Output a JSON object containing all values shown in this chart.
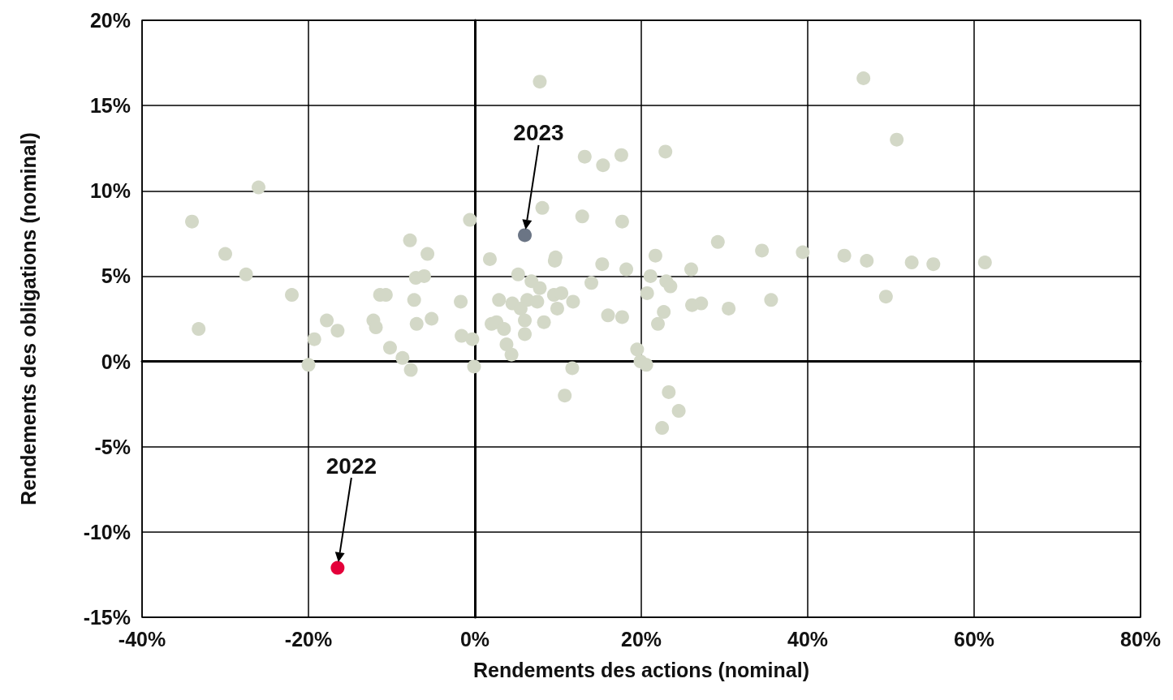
{
  "chart_data": {
    "type": "scatter",
    "xlabel": "Rendements des actions (nominal)",
    "ylabel": "Rendements des obligations (nominal)",
    "xlim": [
      -40,
      80
    ],
    "xticks": [
      {
        "value": -40,
        "label": "-40%"
      },
      {
        "value": -20,
        "label": "-20%"
      },
      {
        "value": 0,
        "label": "0%"
      },
      {
        "value": 20,
        "label": "20%"
      },
      {
        "value": 40,
        "label": "40%"
      },
      {
        "value": 60,
        "label": "60%"
      },
      {
        "value": 80,
        "label": "80%"
      }
    ],
    "ylim": [
      -15,
      20
    ],
    "yticks": [
      {
        "value": -15,
        "label": "-15%"
      },
      {
        "value": -10,
        "label": "-10%"
      },
      {
        "value": -5,
        "label": "-5%"
      },
      {
        "value": 0,
        "label": "0%"
      },
      {
        "value": 5,
        "label": "5%"
      },
      {
        "value": 10,
        "label": "10%"
      },
      {
        "value": 15,
        "label": "15%"
      },
      {
        "value": 20,
        "label": "20%"
      }
    ],
    "grid": true,
    "legend": false,
    "marker": "circle",
    "series": [
      {
        "color": "#d3d8c7",
        "x": [
          7.8,
          46.7,
          50.7,
          13.2,
          17.6,
          15.4,
          22.9,
          -26.0,
          8.1,
          12.9,
          17.7,
          -34.0,
          -0.6,
          -7.8,
          29.2,
          -30.0,
          -5.7,
          21.7,
          34.5,
          39.4,
          44.4,
          47.1,
          52.5,
          55.1,
          61.3,
          1.8,
          9.7,
          9.6,
          15.3,
          18.2,
          26.0,
          -27.5,
          -6.1,
          -7.1,
          5.2,
          21.1,
          6.8,
          7.8,
          14.0,
          23.0,
          23.5,
          -22.0,
          -11.4,
          -10.7,
          9.5,
          10.4,
          20.7,
          49.4,
          -7.3,
          -1.7,
          2.9,
          6.3,
          7.5,
          4.5,
          11.8,
          35.6,
          27.2,
          26.1,
          5.5,
          9.9,
          30.5,
          22.7,
          16.0,
          17.7,
          -33.2,
          -5.2,
          -17.8,
          -12.2,
          -11.9,
          -16.5,
          -7.0,
          2.0,
          2.6,
          6.0,
          8.3,
          22.0,
          3.5,
          6.0,
          -1.6,
          -0.3,
          -19.3,
          -10.2,
          3.8,
          4.4,
          -8.7,
          19.5,
          19.9,
          20.6,
          -20.0,
          -0.1,
          -7.7,
          11.7,
          10.8,
          23.3,
          24.5,
          22.5
        ],
        "values": [
          16.4,
          16.6,
          13.0,
          12.0,
          12.1,
          11.5,
          12.3,
          10.2,
          9.0,
          8.5,
          8.2,
          8.2,
          8.3,
          7.1,
          7.0,
          6.3,
          6.3,
          6.2,
          6.5,
          6.4,
          6.2,
          5.9,
          5.8,
          5.7,
          5.8,
          6.0,
          6.1,
          5.9,
          5.7,
          5.4,
          5.4,
          5.1,
          5.0,
          4.9,
          5.1,
          5.0,
          4.7,
          4.3,
          4.6,
          4.7,
          4.4,
          3.9,
          3.9,
          3.9,
          3.9,
          4.0,
          4.0,
          3.8,
          3.6,
          3.5,
          3.6,
          3.6,
          3.5,
          3.4,
          3.5,
          3.6,
          3.4,
          3.3,
          3.1,
          3.1,
          3.1,
          2.9,
          2.7,
          2.6,
          1.9,
          2.5,
          2.4,
          2.4,
          2.0,
          1.8,
          2.2,
          2.2,
          2.3,
          2.4,
          2.3,
          2.2,
          1.9,
          1.6,
          1.5,
          1.3,
          1.3,
          0.8,
          1.0,
          0.4,
          0.2,
          0.7,
          0.0,
          -0.2,
          -0.2,
          -0.3,
          -0.5,
          -0.4,
          -2.0,
          -1.8,
          -2.9,
          -3.9
        ]
      },
      {
        "name": "2023",
        "color": "#6b7585",
        "x": [
          6.0
        ],
        "values": [
          7.4
        ]
      },
      {
        "name": "2022",
        "color": "#e4003a",
        "x": [
          -16.5
        ],
        "values": [
          -12.1
        ]
      }
    ]
  }
}
